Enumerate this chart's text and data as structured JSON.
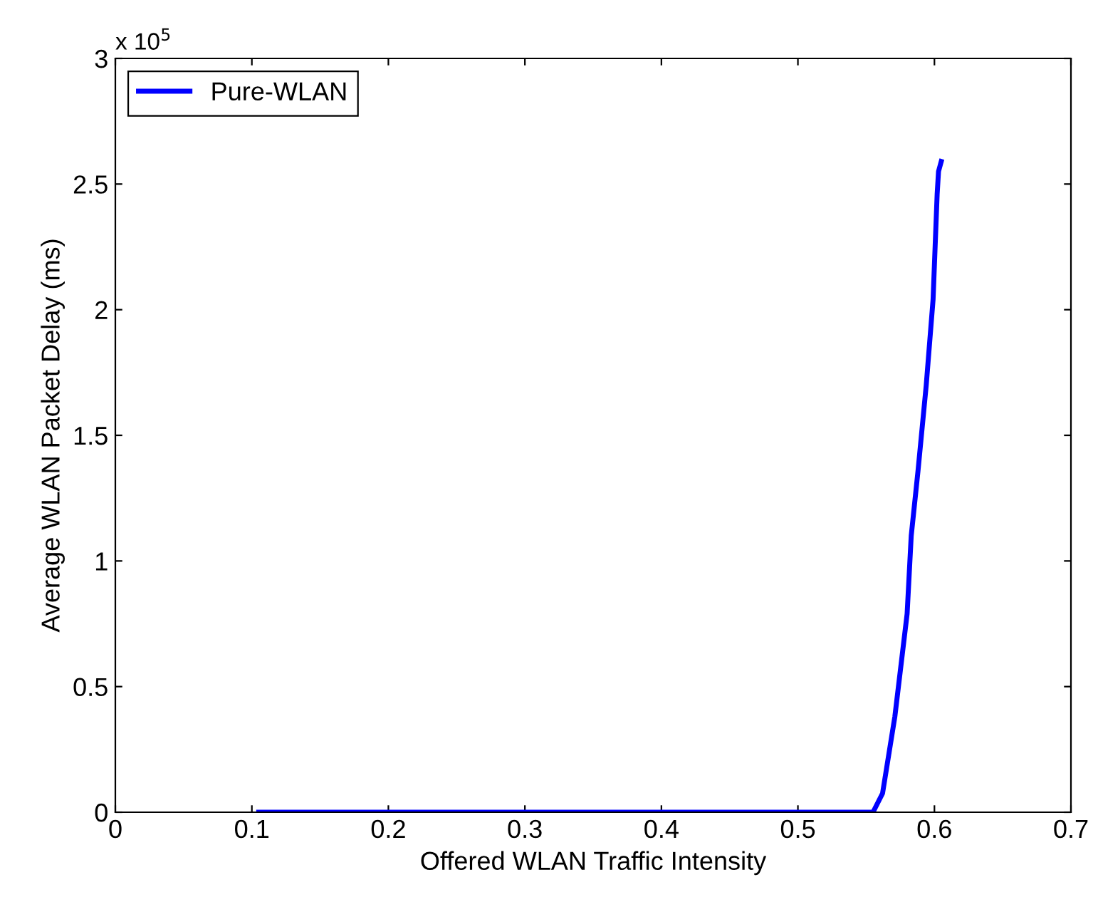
{
  "chart_data": {
    "type": "line",
    "xlabel": "Offered WLAN Traffic Intensity",
    "ylabel": "Average WLAN Packet Delay (ms)",
    "annotations": [
      "x 10$^{5}$"
    ],
    "series": [
      {
        "name": "Pure-WLAN",
        "color": "#0000ff",
        "x": [
          0.105,
          0.2,
          0.3,
          0.4,
          0.5,
          0.555,
          0.562,
          0.571,
          0.58,
          0.583,
          0.588,
          0.594,
          0.599,
          0.602,
          0.603,
          0.605
        ],
        "values": [
          0,
          0,
          0,
          0,
          0,
          0,
          0.075,
          0.38,
          0.79,
          1.1,
          1.36,
          1.7,
          2.04,
          2.46,
          2.55,
          2.59
        ]
      }
    ],
    "xlim": [
      0,
      0.7
    ],
    "xticks": [
      0,
      0.1,
      0.2,
      0.3,
      0.4,
      0.5,
      0.6,
      0.7
    ],
    "ylim": [
      0,
      3
    ],
    "yticks": [
      0,
      0.5,
      1,
      1.5,
      2,
      2.5,
      3
    ],
    "legend": "top left",
    "grid": false,
    "marker": "none",
    "line_style": "solid"
  }
}
